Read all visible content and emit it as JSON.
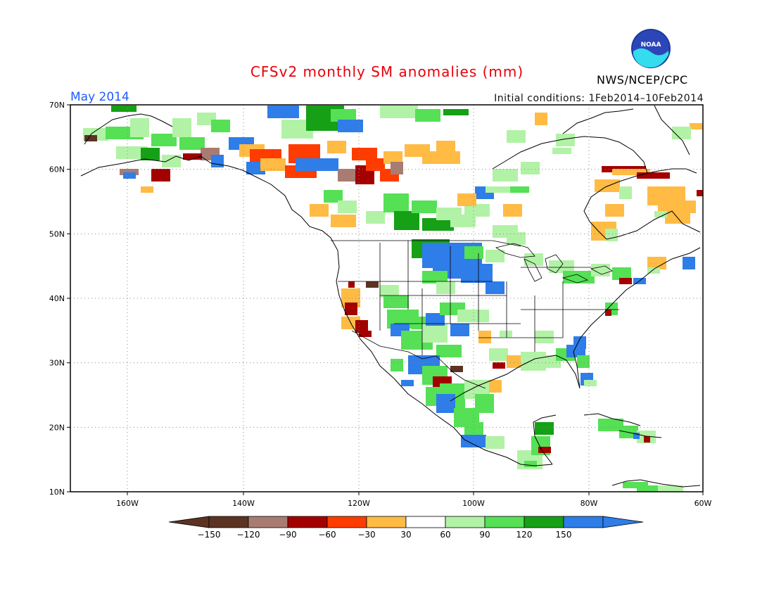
{
  "header": {
    "title": "CFSv2 monthly SM anomalies (mm)",
    "month": "May 2014",
    "initial_conditions": "Initial conditions: 1Feb2014–10Feb2014",
    "agency": "NWS/NCEP/CPC",
    "logo_text": "NOAA",
    "logo_icon": "noaa-logo-icon"
  },
  "map": {
    "lat_labels": [
      "70N",
      "60N",
      "50N",
      "40N",
      "30N",
      "20N",
      "10N"
    ],
    "lon_labels": [
      "160W",
      "140W",
      "120W",
      "100W",
      "80W",
      "60W"
    ],
    "grid": "dotted",
    "region": "North America"
  },
  "colorbar": {
    "labels": [
      "−150",
      "−120",
      "−90",
      "−60",
      "−30",
      "30",
      "60",
      "90",
      "120",
      "150"
    ],
    "colors": [
      "#5c3322",
      "#a87c72",
      "#a30000",
      "#ff3c00",
      "#ffbb44",
      "#ffffff",
      "#b2f2a6",
      "#55e055",
      "#16a016",
      "#2e7de8"
    ],
    "arrow_low": "#5c3322",
    "arrow_high": "#2e7de8"
  }
}
